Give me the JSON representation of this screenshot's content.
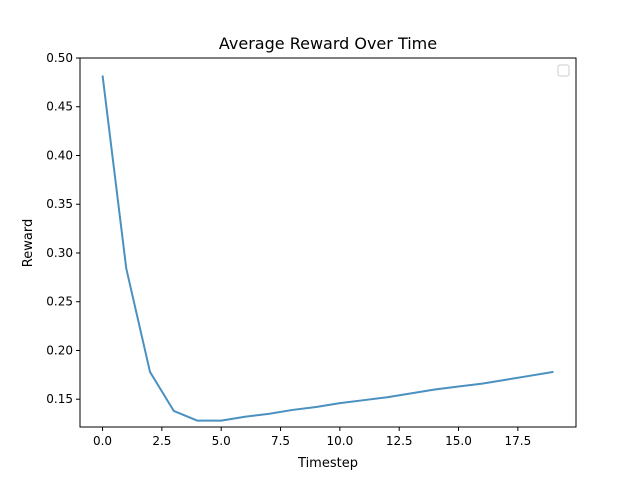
{
  "chart_data": {
    "type": "line",
    "title": "Average Reward Over Time",
    "xlabel": "Timestep",
    "ylabel": "Reward",
    "xlim": [
      -0.95,
      19.95
    ],
    "ylim": [
      0.1215,
      0.5
    ],
    "xticks": [
      0.0,
      2.5,
      5.0,
      7.5,
      10.0,
      12.5,
      15.0,
      17.5
    ],
    "xtick_labels": [
      "0.0",
      "2.5",
      "5.0",
      "7.5",
      "10.0",
      "12.5",
      "15.0",
      "17.5"
    ],
    "yticks": [
      0.15,
      0.2,
      0.25,
      0.3,
      0.35,
      0.4,
      0.45,
      0.5
    ],
    "ytick_labels": [
      "0.15",
      "0.20",
      "0.25",
      "0.30",
      "0.35",
      "0.40",
      "0.45",
      "0.50"
    ],
    "grid": false,
    "legend": {
      "placement": "top-right",
      "entries": []
    },
    "series": [
      {
        "color": "#4a90c0",
        "x": [
          0,
          1,
          2,
          3,
          4,
          5,
          6,
          7,
          8,
          9,
          10,
          11,
          12,
          13,
          14,
          15,
          16,
          17,
          18,
          19
        ],
        "values": [
          0.482,
          0.284,
          0.178,
          0.138,
          0.128,
          0.128,
          0.132,
          0.135,
          0.139,
          0.142,
          0.146,
          0.149,
          0.152,
          0.156,
          0.16,
          0.163,
          0.166,
          0.17,
          0.174,
          0.178
        ]
      }
    ]
  }
}
